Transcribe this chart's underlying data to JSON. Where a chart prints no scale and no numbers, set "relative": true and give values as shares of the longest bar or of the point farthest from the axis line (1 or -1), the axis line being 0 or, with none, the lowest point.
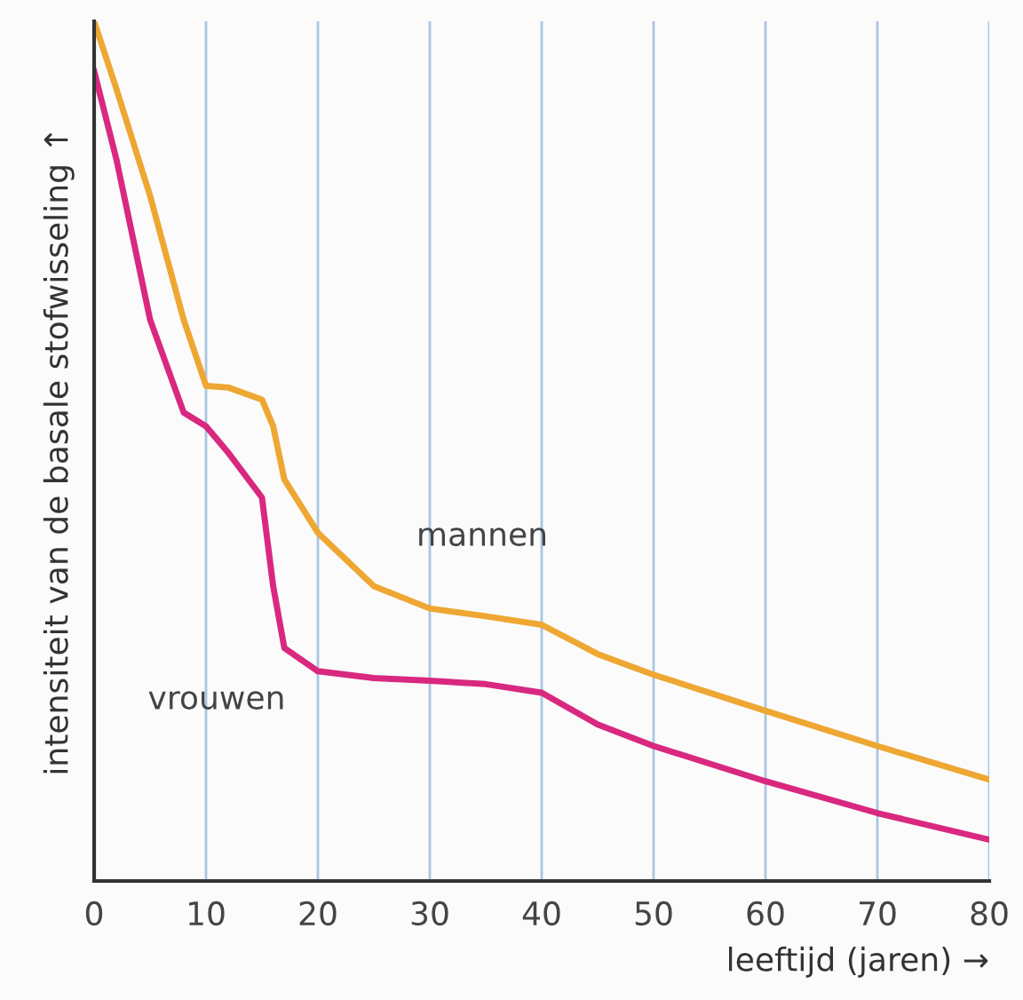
{
  "chart_data": {
    "type": "line",
    "relative": true,
    "xlabel": "leeftijd (jaren) →",
    "ylabel": "intensiteit van de basale stofwisseling ↑",
    "xlim": [
      0,
      80
    ],
    "xticks": [
      0,
      10,
      20,
      30,
      40,
      50,
      60,
      70,
      80
    ],
    "grid": "x",
    "marker": "none",
    "line_style": "solid",
    "legend": false,
    "x": [
      0,
      2,
      5,
      8,
      10,
      12,
      15,
      16,
      17,
      20,
      25,
      30,
      35,
      40,
      45,
      50,
      60,
      70,
      80
    ],
    "series": [
      {
        "name": "mannen",
        "color": "#eea732",
        "values": [
          1.0,
          0.921,
          0.797,
          0.653,
          0.576,
          0.574,
          0.56,
          0.529,
          0.467,
          0.405,
          0.343,
          0.317,
          0.308,
          0.298,
          0.264,
          0.24,
          0.198,
          0.157,
          0.118
        ]
      },
      {
        "name": "vrouwen",
        "color": "#d9287f",
        "values": [
          0.942,
          0.839,
          0.653,
          0.545,
          0.529,
          0.498,
          0.446,
          0.343,
          0.271,
          0.244,
          0.236,
          0.233,
          0.229,
          0.219,
          0.182,
          0.157,
          0.116,
          0.079,
          0.048
        ]
      }
    ]
  }
}
